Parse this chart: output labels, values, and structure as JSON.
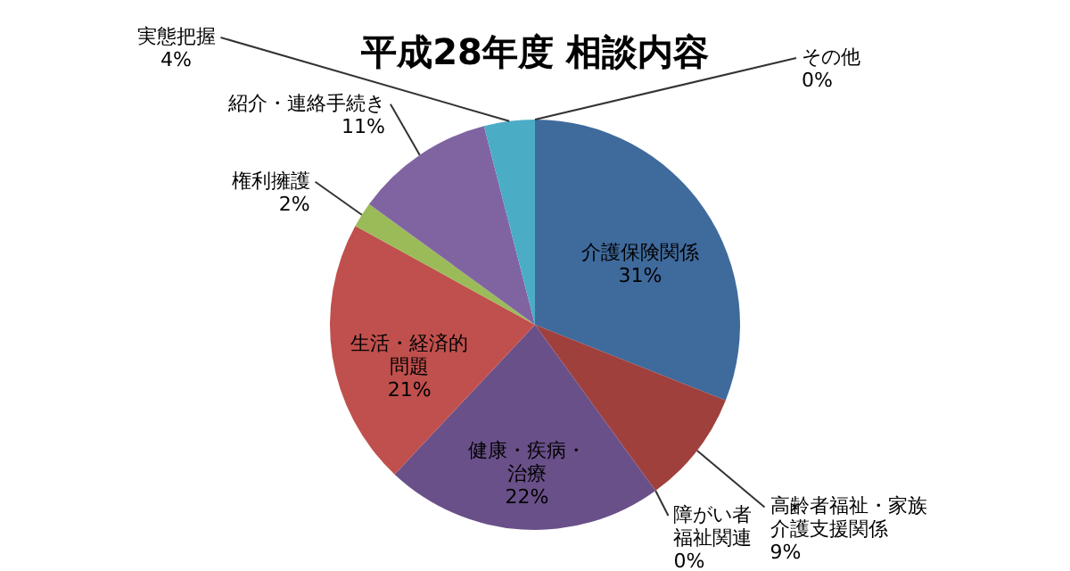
{
  "chart_data": {
    "type": "pie",
    "title": "平成28年度 相談内容",
    "categories": [
      "介護保険関係",
      "高齢者福祉・家族介護支援関係",
      "障がい者福祉関連",
      "健康・疾病・治療",
      "生活・経済的問題",
      "権利擁護",
      "紹介・連絡手続き",
      "実態把握",
      "その他"
    ],
    "values": [
      31,
      9,
      0,
      22,
      21,
      2,
      11,
      4,
      0
    ],
    "value_labels": [
      "31%",
      "9%",
      "0%",
      "22%",
      "21%",
      "2%",
      "11%",
      "4%",
      "0%"
    ],
    "colors": [
      "#3f6a9c",
      "#a0403d",
      "#9bbb59",
      "#6a5089",
      "#c0504d",
      "#9bbb59",
      "#8064a2",
      "#4bacc6",
      "#f79646"
    ]
  }
}
